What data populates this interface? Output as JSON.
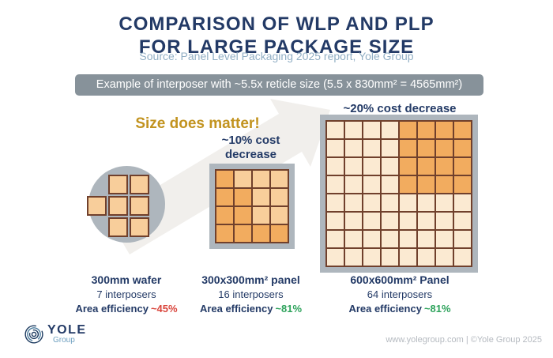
{
  "title": {
    "line1": "COMPARISON OF WLP AND PLP",
    "line2": "FOR LARGE PACKAGE SIZE"
  },
  "source": "Source: Panel Level Packaging 2025 report, Yole Group",
  "banner": "Example of interposer with ~5.5x reticle size (5.5 x 830mm² = 4565mm²)",
  "tagline": "Size does matter!",
  "wafer": {
    "label": "300mm wafer",
    "count": "7 interposers",
    "eff_prefix": "Area efficiency",
    "eff_value": "~45%"
  },
  "panel_300": {
    "cost_line1": "~10% cost",
    "cost_line2": "decrease",
    "label": "300x300mm² panel",
    "count": "16 interposers",
    "eff_prefix": "Area efficiency",
    "eff_value": "~81%"
  },
  "panel_600": {
    "cost": "~20% cost decrease",
    "label": "600x600mm² Panel",
    "count": "64 interposers",
    "eff_prefix": "Area efficiency",
    "eff_value": "~81%"
  },
  "footer": {
    "brand": "YOLE",
    "brand_sub": "Group",
    "credit": "www.yolegroup.com | ©Yole Group 2025"
  },
  "colors": {
    "navy": "#233A66",
    "subtitle": "#92AFC5",
    "banner_bg": "#87929A",
    "gold": "#C2931F",
    "red": "#D9453C",
    "green": "#2EA35C",
    "frame_gray": "#AEB6BD",
    "cell_border": "#70402C",
    "cell_light": "#F8CE9B",
    "cell_dark": "#F2AC5F",
    "cell_pale": "#FBEAD2",
    "arrow": "#F1EFEC",
    "logo_sub": "#6FA0C0",
    "footer_gray": "#B5BAC0"
  },
  "grids": {
    "wafer_mask": [
      [
        0,
        1,
        1
      ],
      [
        1,
        1,
        1
      ],
      [
        0,
        1,
        1
      ]
    ],
    "panel_300_shade": [
      [
        1,
        0,
        0,
        0
      ],
      [
        1,
        1,
        0,
        0
      ],
      [
        1,
        1,
        0,
        0
      ],
      [
        1,
        1,
        1,
        1
      ]
    ],
    "panel_600": {
      "rows": 8,
      "cols": 8,
      "dark_block": {
        "row_start": 0,
        "row_end": 3,
        "col_start": 4,
        "col_end": 7
      }
    }
  }
}
